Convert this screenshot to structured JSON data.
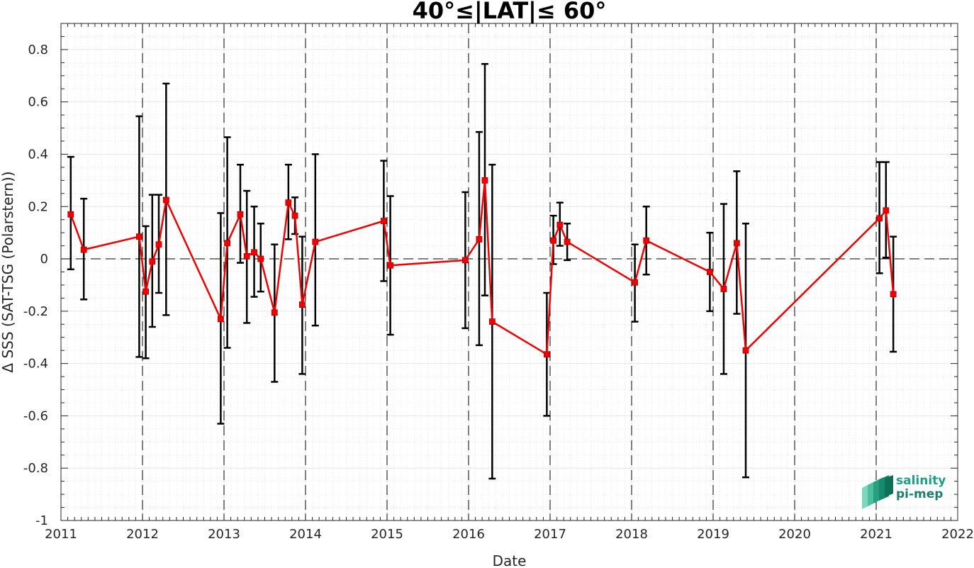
{
  "chart_data": {
    "type": "line",
    "title": "40°≤|LAT|≤ 60°",
    "xlabel": "Date",
    "ylabel": "Δ SSS (SAT-TSG (Polarstern))",
    "xlim": [
      2011,
      2022
    ],
    "ylim": [
      -1,
      0.9
    ],
    "xticks": [
      "2011",
      "2012",
      "2013",
      "2014",
      "2015",
      "2016",
      "2017",
      "2018",
      "2019",
      "2020",
      "2021",
      "2022"
    ],
    "yticks": [
      "-1",
      "-0.8",
      "-0.6",
      "-0.4",
      "-0.2",
      "0",
      "0.2",
      "0.4",
      "0.6",
      "0.8"
    ],
    "grid": true,
    "year_boundaries": [
      2012,
      2013,
      2014,
      2015,
      2016,
      2017,
      2018,
      2019,
      2020,
      2021
    ],
    "zero_line": 0,
    "series": [
      {
        "color": "#ee0000",
        "errorbar_color": "#000000",
        "x": [
          2011.12,
          2011.28,
          2011.96,
          2012.04,
          2012.12,
          2012.2,
          2012.29,
          2012.96,
          2013.04,
          2013.2,
          2013.28,
          2013.37,
          2013.45,
          2013.62,
          2013.79,
          2013.87,
          2013.96,
          2014.12,
          2014.96,
          2015.04,
          2015.96,
          2016.13,
          2016.2,
          2016.29,
          2016.96,
          2017.04,
          2017.12,
          2017.21,
          2018.04,
          2018.18,
          2018.96,
          2019.13,
          2019.29,
          2019.4,
          2021.04,
          2021.12,
          2021.21
        ],
        "y": [
          0.17,
          0.035,
          0.085,
          -0.125,
          -0.01,
          0.055,
          0.225,
          -0.23,
          0.06,
          0.17,
          0.01,
          0.025,
          0.0,
          -0.205,
          0.215,
          0.165,
          -0.175,
          0.065,
          0.145,
          -0.025,
          -0.005,
          0.075,
          0.3,
          -0.24,
          -0.365,
          0.07,
          0.13,
          0.065,
          -0.09,
          0.07,
          -0.05,
          -0.115,
          0.06,
          -0.35,
          0.155,
          0.185,
          -0.135
        ],
        "err_low": [
          -0.04,
          -0.155,
          -0.375,
          -0.38,
          -0.26,
          -0.13,
          -0.215,
          -0.63,
          -0.34,
          -0.015,
          -0.245,
          -0.145,
          -0.125,
          -0.47,
          0.075,
          0.095,
          -0.44,
          -0.255,
          -0.085,
          -0.29,
          -0.265,
          -0.33,
          -0.14,
          -0.84,
          -0.6,
          -0.02,
          0.05,
          -0.005,
          -0.24,
          -0.06,
          -0.2,
          -0.44,
          -0.21,
          -0.835,
          -0.055,
          0.005,
          -0.355
        ],
        "err_high": [
          0.39,
          0.23,
          0.545,
          0.125,
          0.245,
          0.245,
          0.67,
          0.175,
          0.465,
          0.36,
          0.26,
          0.2,
          0.135,
          0.055,
          0.36,
          0.235,
          0.085,
          0.4,
          0.375,
          0.24,
          0.255,
          0.485,
          0.745,
          0.36,
          -0.13,
          0.165,
          0.215,
          0.135,
          0.055,
          0.2,
          0.1,
          0.21,
          0.335,
          0.135,
          0.37,
          0.37,
          0.085
        ]
      }
    ]
  },
  "logo": {
    "line1": "salinity",
    "line2": "pi-mep",
    "color_primary": "#1d9e8a",
    "color_secondary": "#1f7c70"
  }
}
